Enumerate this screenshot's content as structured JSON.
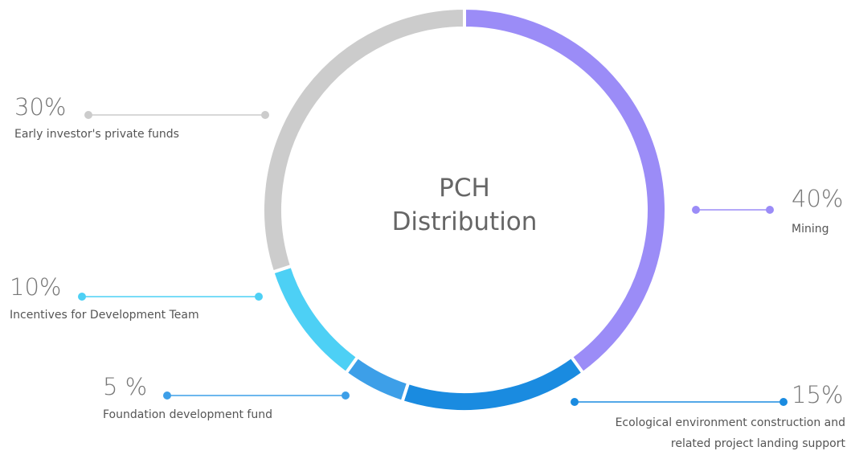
{
  "chart_data": {
    "type": "donut",
    "title": "PCH Distribution",
    "categories": [
      "Mining",
      "Ecological environment construction and related project landing support",
      "Foundation development fund",
      "Incentives for Development Team",
      "Early investor's private funds"
    ],
    "values": [
      40,
      15,
      5,
      10,
      30
    ],
    "value_labels": [
      "40%",
      "15%",
      "5 %",
      "10%",
      "30%"
    ],
    "colors": [
      "#9b8cf7",
      "#1a8be0",
      "#3d9fe8",
      "#4dd0f5",
      "#cccccc"
    ]
  }
}
